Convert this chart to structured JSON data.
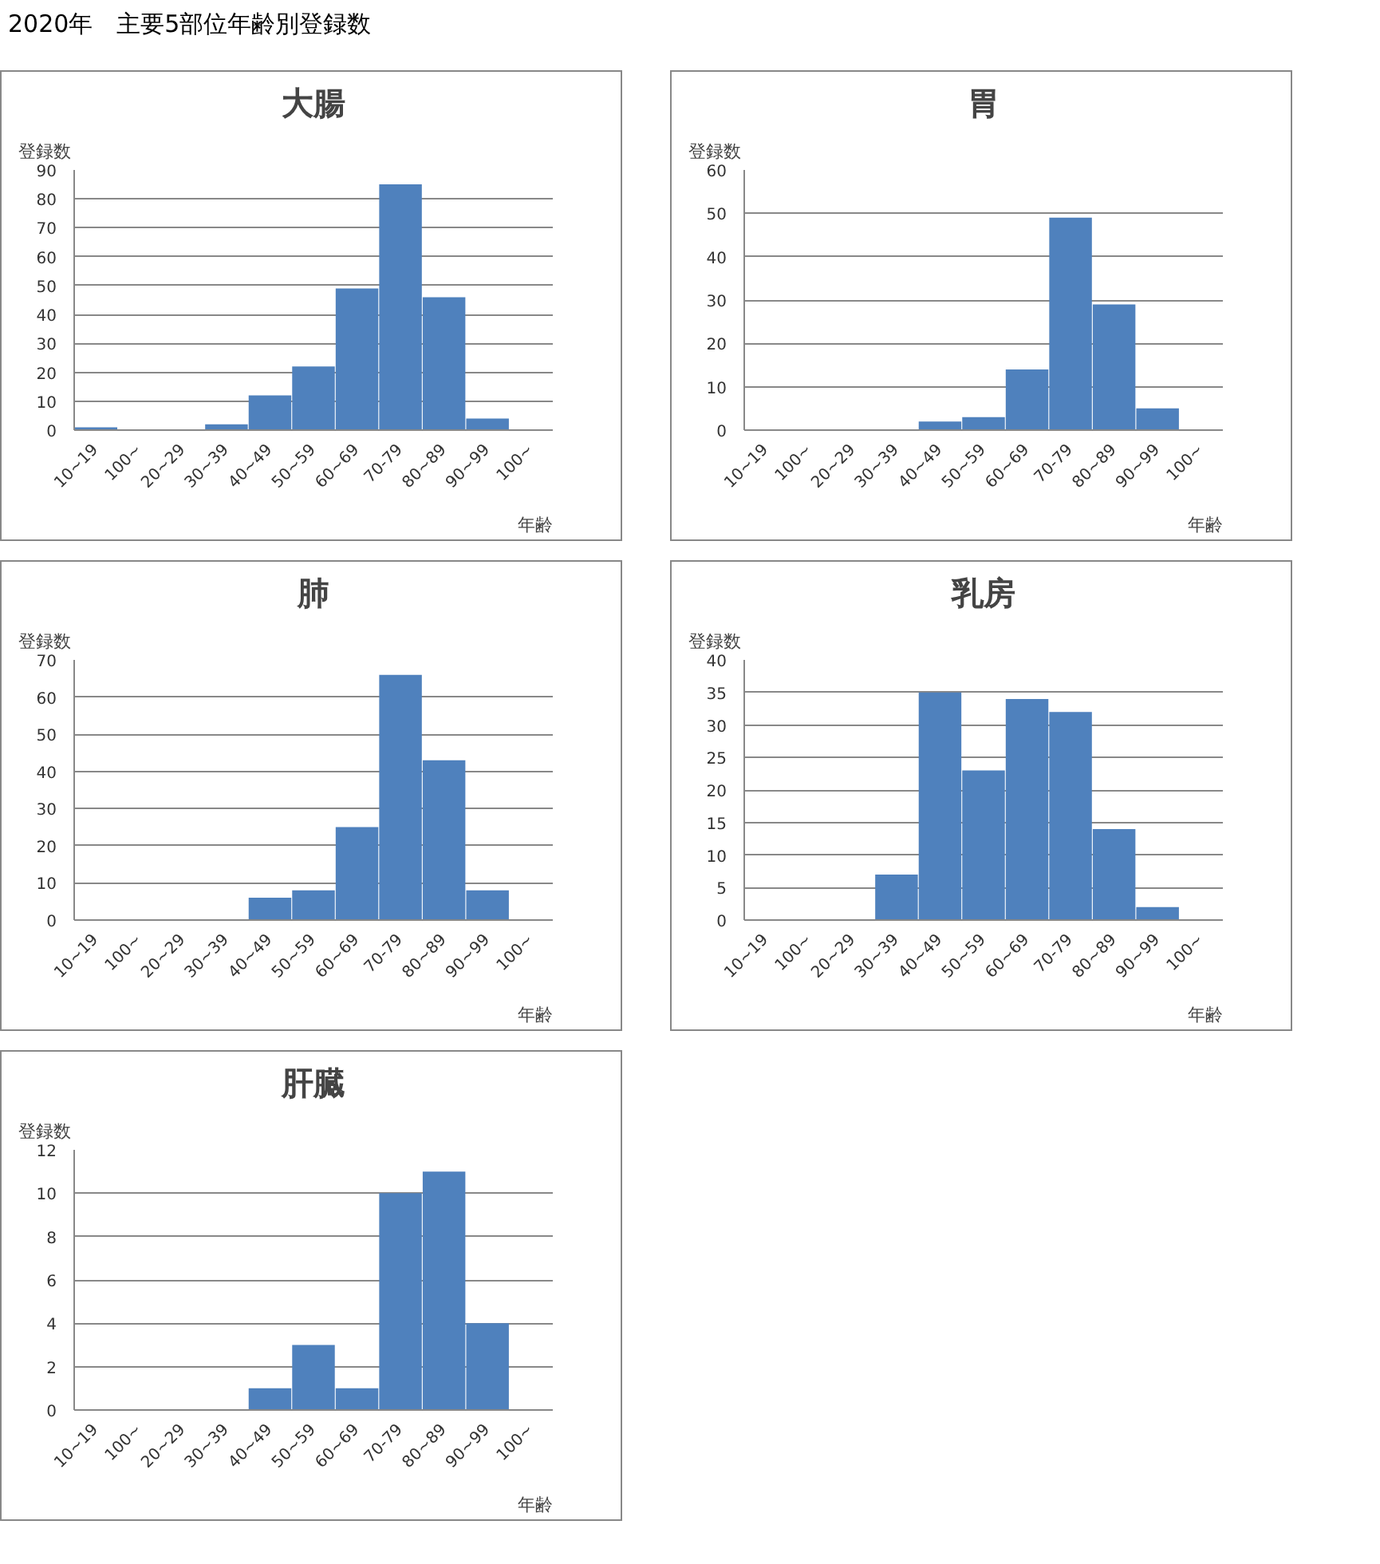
{
  "chart_data": [
    {
      "type": "bar",
      "title": "大腸",
      "annotations": [
        "2020年　主要5部位年齢別登録数"
      ],
      "xlabel": "年齢",
      "ylabel": "登録数",
      "categories": [
        "10~19",
        "100~",
        "20~29",
        "30~39",
        "40~49",
        "50~59",
        "60~69",
        "70-79",
        "80~89",
        "90~99",
        "100~"
      ],
      "color": "#4f81bd",
      "values": [
        1,
        0,
        0,
        2,
        12,
        22,
        49,
        85,
        46,
        4,
        0
      ],
      "ylim": [
        0,
        90
      ],
      "yticks": [
        0,
        10,
        20,
        30,
        40,
        50,
        60,
        70,
        80,
        90
      ],
      "grid": "y"
    },
    {
      "type": "bar",
      "title": "胃",
      "xlabel": "年齢",
      "ylabel": "登録数",
      "categories": [
        "10~19",
        "100~",
        "20~29",
        "30~39",
        "40~49",
        "50~59",
        "60~69",
        "70-79",
        "80~89",
        "90~99",
        "100~"
      ],
      "color": "#4f81bd",
      "values": [
        0,
        0,
        0,
        0,
        2,
        3,
        14,
        49,
        29,
        5,
        0
      ],
      "ylim": [
        0,
        60
      ],
      "yticks": [
        0,
        10,
        20,
        30,
        40,
        50,
        60
      ],
      "grid": "y"
    },
    {
      "type": "bar",
      "title": "肺",
      "xlabel": "年齢",
      "ylabel": "登録数",
      "categories": [
        "10~19",
        "100~",
        "20~29",
        "30~39",
        "40~49",
        "50~59",
        "60~69",
        "70-79",
        "80~89",
        "90~99",
        "100~"
      ],
      "color": "#4f81bd",
      "values": [
        0,
        0,
        0,
        0,
        6,
        8,
        25,
        66,
        43,
        8,
        0
      ],
      "ylim": [
        0,
        70
      ],
      "yticks": [
        0,
        10,
        20,
        30,
        40,
        50,
        60,
        70
      ],
      "grid": "y"
    },
    {
      "type": "bar",
      "title": "乳房",
      "xlabel": "年齢",
      "ylabel": "登録数",
      "categories": [
        "10~19",
        "100~",
        "20~29",
        "30~39",
        "40~49",
        "50~59",
        "60~69",
        "70-79",
        "80~89",
        "90~99",
        "100~"
      ],
      "color": "#4f81bd",
      "values": [
        0,
        0,
        0,
        7,
        35,
        23,
        34,
        32,
        14,
        2,
        0
      ],
      "ylim": [
        0,
        40
      ],
      "yticks": [
        0,
        5,
        10,
        15,
        20,
        25,
        30,
        35,
        40
      ],
      "grid": "y"
    },
    {
      "type": "bar",
      "title": "肝臓",
      "xlabel": "年齢",
      "ylabel": "登録数",
      "categories": [
        "10~19",
        "100~",
        "20~29",
        "30~39",
        "40~49",
        "50~59",
        "60~69",
        "70-79",
        "80~89",
        "90~99",
        "100~"
      ],
      "color": "#4f81bd",
      "values": [
        0,
        0,
        0,
        0,
        1,
        3,
        1,
        10,
        11,
        4,
        0
      ],
      "ylim": [
        0,
        12
      ],
      "yticks": [
        0,
        2,
        4,
        6,
        8,
        10,
        12
      ],
      "grid": "y"
    }
  ]
}
